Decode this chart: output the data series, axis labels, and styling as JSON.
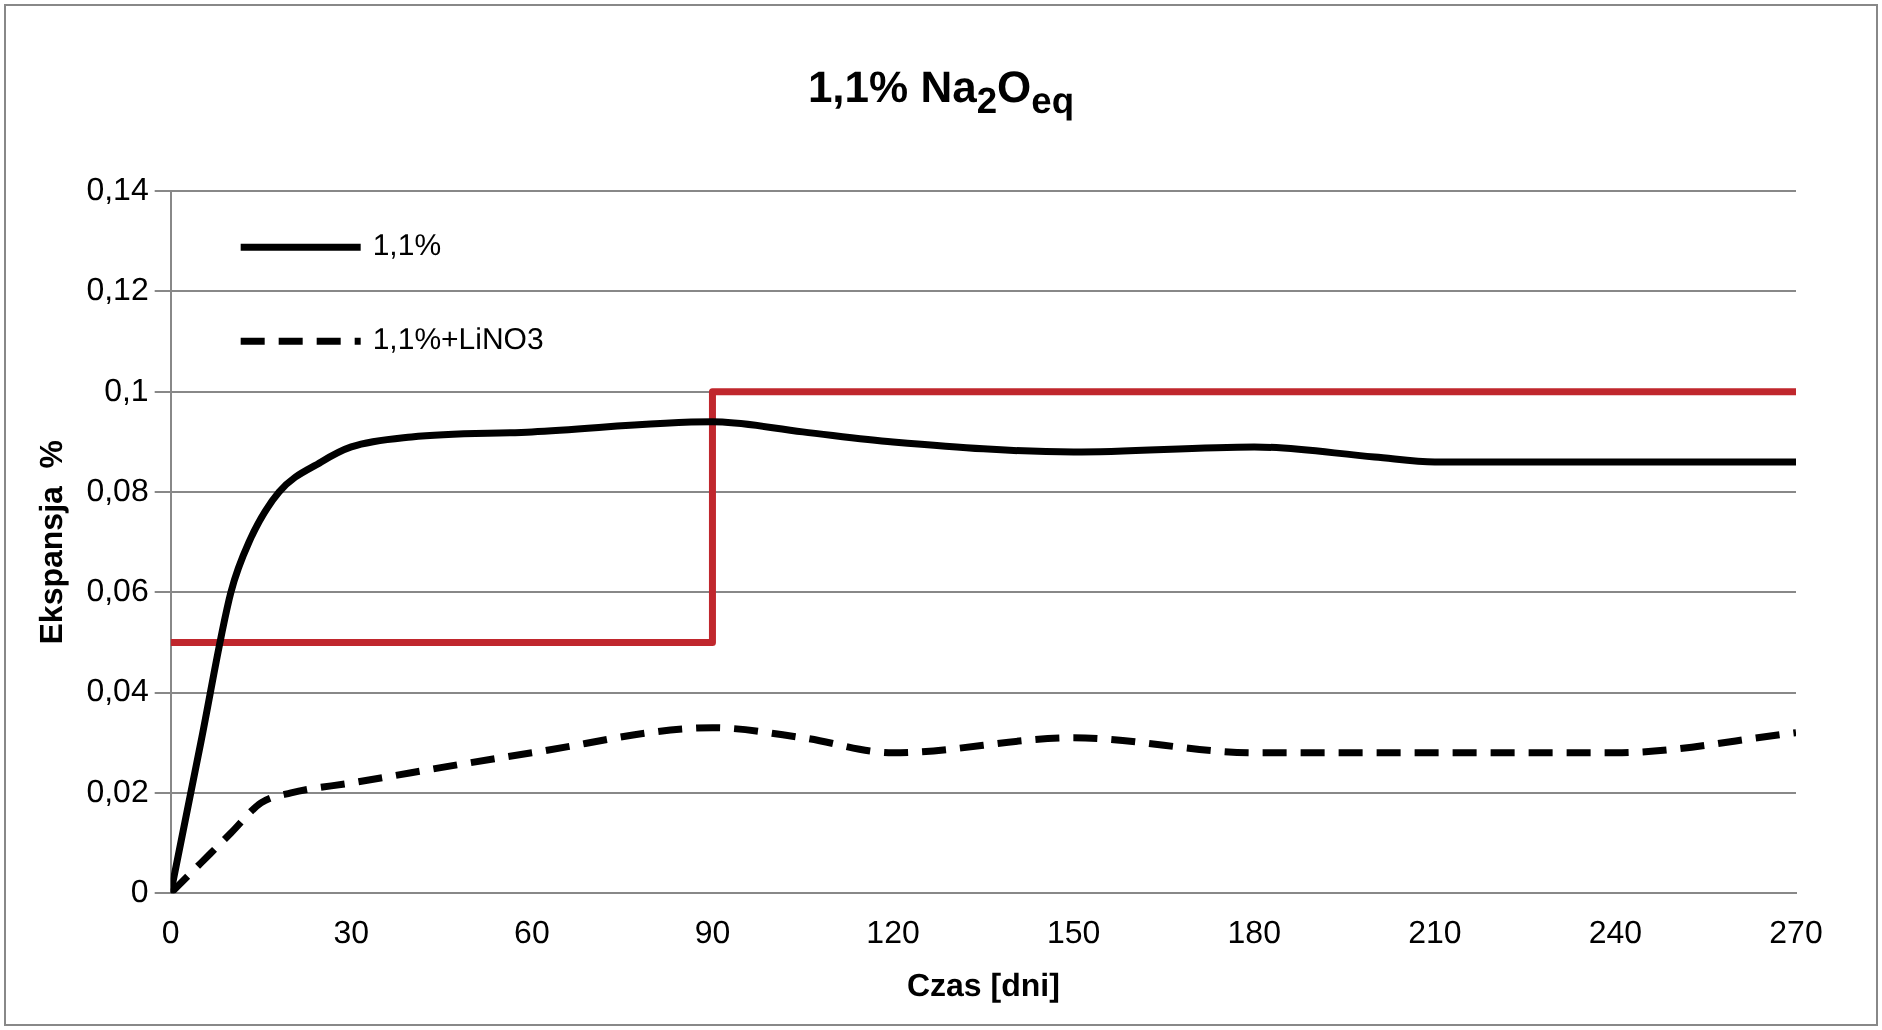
{
  "chart_data": {
    "type": "line",
    "title": "1,1% Na$_{2}$O$_{eq}$",
    "xlabel": "Czas [dni]",
    "ylabel": "Ekspansja  %",
    "xlim": [
      0,
      270
    ],
    "xticks": [
      0,
      30,
      60,
      90,
      120,
      150,
      180,
      210,
      240,
      270
    ],
    "ylim": [
      0,
      0.14
    ],
    "yticks": [
      0,
      {
        "value": 0.02,
        "label": "0,02"
      },
      {
        "value": 0.04,
        "label": "0,04"
      },
      {
        "value": 0.06,
        "label": "0,06"
      },
      {
        "value": 0.08,
        "label": "0,08"
      },
      {
        "value": 0.1,
        "label": "0,1"
      },
      {
        "value": 0.12,
        "label": "0,12"
      },
      {
        "value": 0.14,
        "label": "0,14"
      }
    ],
    "grid": "y",
    "legend": "top left",
    "marker": "none",
    "series": [
      {
        "name": "1,1%",
        "color": "#000000",
        "line_style": "solid",
        "x": [
          0,
          5,
          10,
          13,
          18,
          25,
          30,
          40,
          60,
          90,
          105,
          120,
          150,
          180,
          200,
          210,
          240,
          270
        ],
        "values": [
          0,
          0.03,
          0.06,
          0.07,
          0.08,
          0.086,
          0.089,
          0.091,
          0.092,
          0.094,
          0.092,
          0.09,
          0.088,
          0.089,
          0.087,
          0.086,
          0.086,
          0.086
        ]
      },
      {
        "name": "1,1%+LiNO3",
        "color": "#000000",
        "line_style": "dashed",
        "x": [
          0,
          5,
          10,
          15,
          20,
          30,
          60,
          90,
          105,
          120,
          150,
          180,
          210,
          240,
          270
        ],
        "values": [
          0,
          0.006,
          0.012,
          0.018,
          0.02,
          0.022,
          0.028,
          0.033,
          0.031,
          0.028,
          0.031,
          0.028,
          0.028,
          0.028,
          0.032
        ]
      },
      {
        "color": "#c0272d",
        "line_style": "solid",
        "x": [
          0,
          90,
          90,
          270
        ],
        "values": [
          0.05,
          0.05,
          0.1,
          0.1
        ]
      }
    ]
  }
}
